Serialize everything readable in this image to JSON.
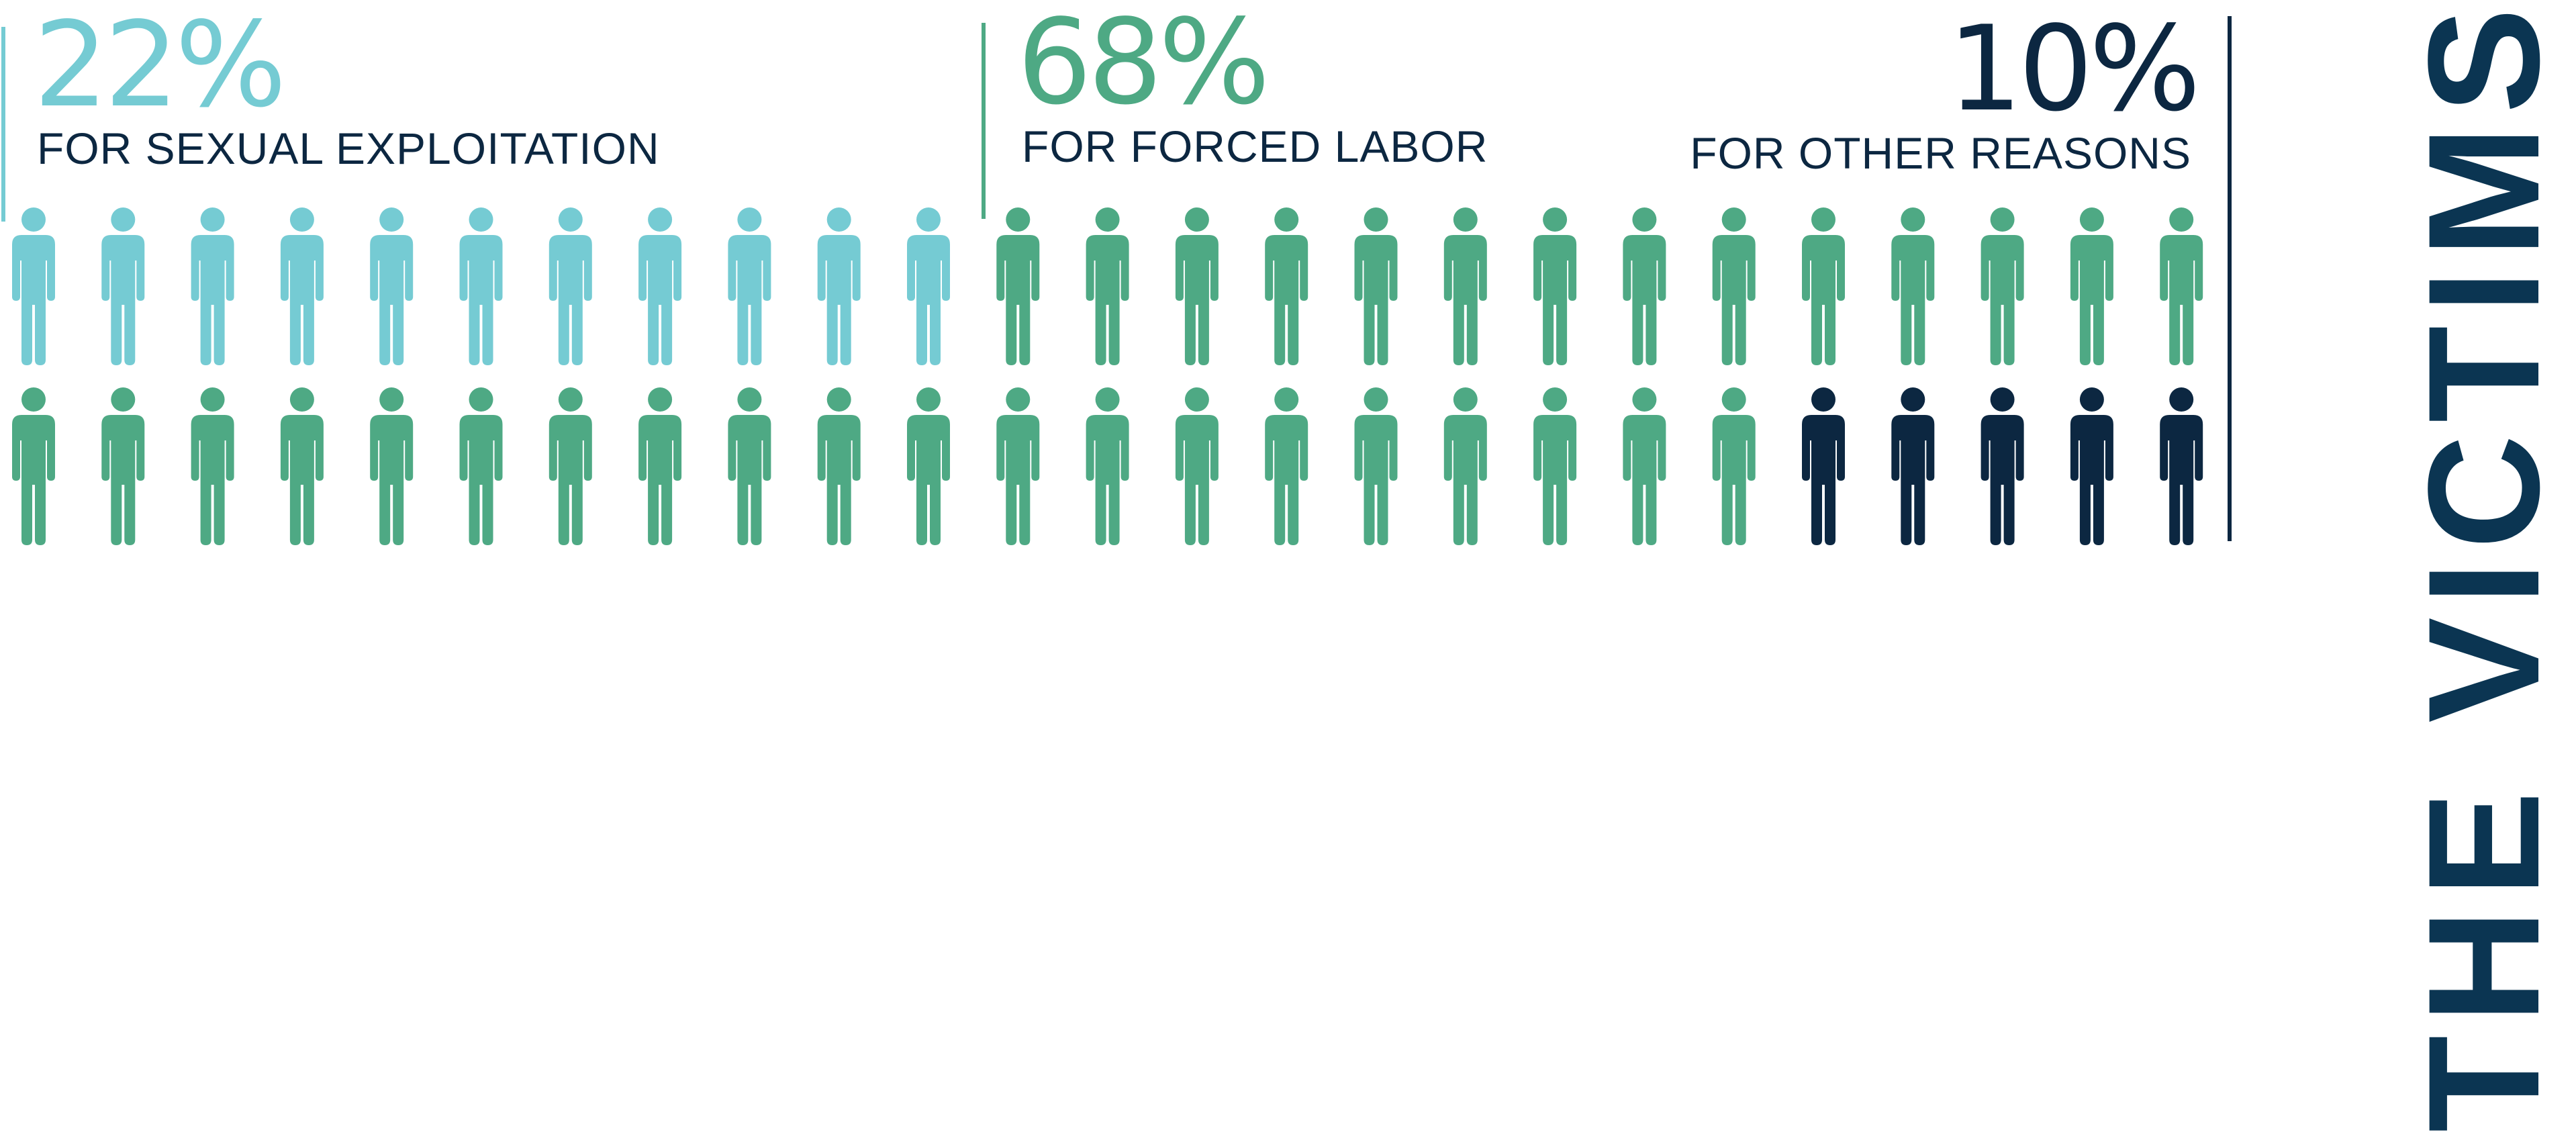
{
  "title": "THE VICTIMS",
  "colors": {
    "sexual": "#75cbd3",
    "labor": "#4ea984",
    "other": "#0c2741",
    "title": "#0b3552",
    "divider_sexual": "#75cbd3",
    "divider_labor": "#4ea984",
    "divider_other": "#0c2741"
  },
  "icon": "person-icon",
  "chart_data": {
    "type": "pictograph",
    "total_icons": 50,
    "rows": 2,
    "icons_per_row": 25,
    "series": [
      {
        "key": "sexual",
        "label": "22%",
        "name": "FOR SEXUAL EXPLOITATION",
        "value": 22,
        "count": 11
      },
      {
        "key": "labor",
        "label": "68%",
        "name": "FOR FORCED LABOR",
        "value": 68,
        "count": 34
      },
      {
        "key": "other",
        "label": "10%",
        "name": "FOR OTHER REASONS",
        "value": 10,
        "count": 5
      }
    ]
  }
}
